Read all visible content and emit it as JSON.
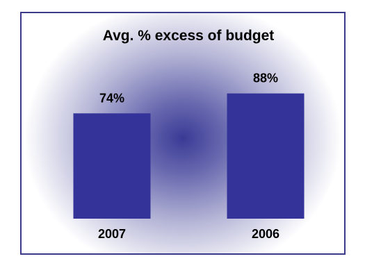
{
  "chart_data": {
    "type": "bar",
    "title": "Avg. % excess of budget",
    "categories": [
      "2007",
      "2006"
    ],
    "values": [
      74,
      88
    ],
    "value_labels": [
      "74%",
      "88%"
    ],
    "ylim": [
      0,
      100
    ],
    "bar_color": "#333399",
    "legend": "none",
    "grid": false
  }
}
